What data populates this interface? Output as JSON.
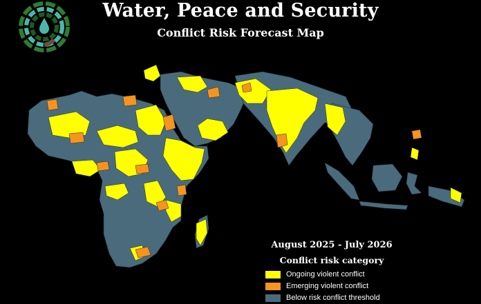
{
  "header": {
    "title": "Water, Peace and Security",
    "subtitle": "Conflict Risk Forecast Map"
  },
  "legend": {
    "period": "August 2025 - July 2026",
    "category_title": "Conflict risk category",
    "items": [
      {
        "label": "Ongoing violent conflict",
        "color": "#ffff00"
      },
      {
        "label": "Emerging violent conflict",
        "color": "#f7941d"
      },
      {
        "label": "Below risk conflict threshold",
        "color": "#4a6b7c"
      }
    ]
  },
  "colors": {
    "background": "#000000",
    "land_base": "#4a6b7c",
    "ongoing": "#ffff00",
    "emerging": "#f7941d"
  },
  "logo": {
    "icon": "water-drop-rings-logo",
    "ring_colors": [
      "#2e7d32",
      "#4db6ac",
      "#1b5e20",
      "#6d4c41",
      "#26a69a"
    ]
  }
}
